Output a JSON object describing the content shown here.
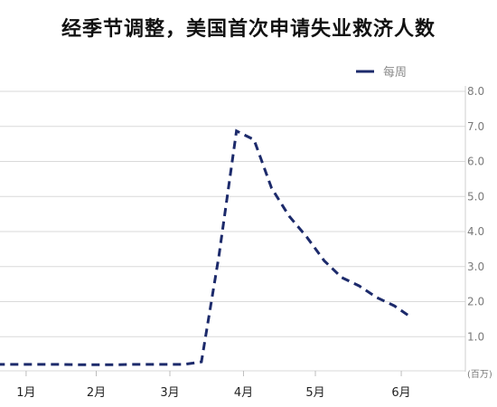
{
  "chart_data": {
    "type": "line",
    "title": "经季节调整，美国首次申请失业救济人数",
    "y_unit": "(百万)",
    "legend_position": "top-right",
    "ylim": [
      0,
      8
    ],
    "y_ticks": [
      "1.0",
      "2.0",
      "3.0",
      "4.0",
      "5.0",
      "6.0",
      "7.0",
      "8.0"
    ],
    "x_ticks": [
      "1月",
      "2月",
      "3月",
      "4月",
      "5月",
      "6月"
    ],
    "grid": true,
    "colors": {
      "series": "#1c2a6b",
      "grid": "#d9d9d9"
    },
    "series": [
      {
        "name": "每周",
        "week": [
          -3,
          -2,
          -1,
          0,
          1,
          2,
          3,
          4,
          5,
          6,
          7,
          8,
          9,
          10,
          11,
          12,
          13,
          14,
          15,
          16,
          17,
          18,
          19,
          20,
          21,
          22,
          23
        ],
        "values": [
          0.21,
          0.21,
          0.21,
          0.21,
          0.21,
          0.21,
          0.21,
          0.2,
          0.2,
          0.2,
          0.21,
          0.21,
          0.21,
          0.21,
          0.28,
          3.31,
          6.87,
          6.62,
          5.24,
          4.44,
          3.85,
          3.17,
          2.69,
          2.45,
          2.12,
          1.88,
          1.54
        ]
      }
    ],
    "x_tick_weeks": [
      1,
      5,
      9.2,
      13.4,
      17.5,
      22.4
    ]
  }
}
